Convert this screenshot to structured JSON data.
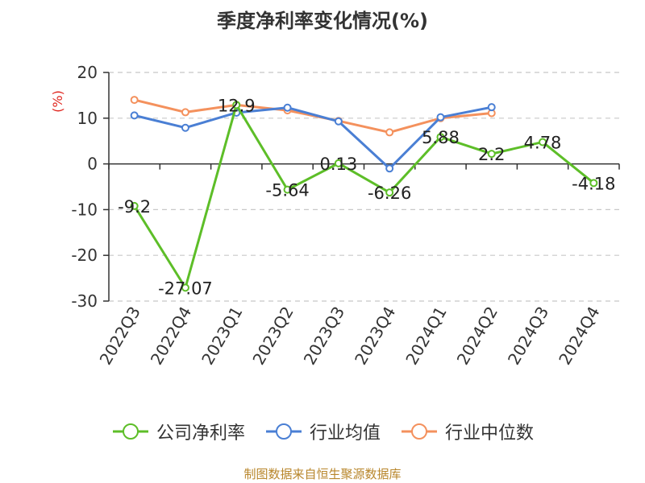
{
  "source": "制图数据来自恒生聚源数据库",
  "chart_data": {
    "type": "line",
    "title": "季度净利率变化情况(%)",
    "ylabel": "(%)",
    "xlabel": "",
    "ylim": [
      -30,
      20
    ],
    "yticks": [
      20,
      10,
      0,
      -10,
      -20,
      -30
    ],
    "grid": true,
    "legend_position": "bottom",
    "categories": [
      "2022Q3",
      "2022Q4",
      "2023Q1",
      "2023Q2",
      "2023Q3",
      "2023Q4",
      "2024Q1",
      "2024Q2",
      "2024Q3",
      "2024Q4"
    ],
    "series": [
      {
        "name": "公司净利率",
        "color": "#5dbe28",
        "values": [
          -9.2,
          -27.07,
          12.9,
          -5.64,
          0.13,
          -6.26,
          5.88,
          2.2,
          4.78,
          -4.18
        ],
        "labels": [
          "-9.2",
          "-27.07",
          "12.9",
          "-5.64",
          "0.13",
          "-6.26",
          "5.88",
          "2.2",
          "4.78",
          "-4.18"
        ]
      },
      {
        "name": "行业均值",
        "color": "#4a7fd4",
        "values": [
          10.6,
          7.9,
          11.2,
          12.3,
          9.3,
          -1.0,
          10.2,
          12.4,
          null,
          null
        ]
      },
      {
        "name": "行业中位数",
        "color": "#f4915d",
        "values": [
          14.0,
          11.3,
          12.9,
          11.7,
          9.4,
          6.9,
          10.0,
          11.1,
          null,
          null
        ]
      }
    ]
  }
}
